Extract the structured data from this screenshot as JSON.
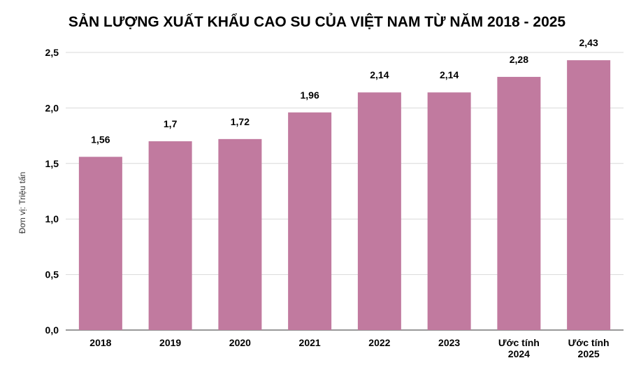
{
  "chart_data": {
    "type": "bar",
    "title": "SẢN LƯỢNG XUẤT KHẨU CAO SU CỦA VIỆT NAM TỪ NĂM 2018 - 2025",
    "xlabel": "",
    "ylabel": "Đơn vị: Triệu tấn",
    "categories": [
      [
        "2018"
      ],
      [
        "2019"
      ],
      [
        "2020"
      ],
      [
        "2021"
      ],
      [
        "2022"
      ],
      [
        "2023"
      ],
      [
        "Ước tính",
        "2024"
      ],
      [
        "Ước tính",
        "2025"
      ]
    ],
    "values": [
      1.56,
      1.7,
      1.72,
      1.96,
      2.14,
      2.14,
      2.28,
      2.43
    ],
    "value_labels": [
      "1,56",
      "1,7",
      "1,72",
      "1,96",
      "2,14",
      "2,14",
      "2,28",
      "2,43"
    ],
    "ylim": [
      0,
      2.5
    ],
    "yticks": [
      0,
      0.5,
      1.0,
      1.5,
      2.0,
      2.5
    ],
    "ytick_labels": [
      "0,0",
      "0,5",
      "1,0",
      "1,5",
      "2,0",
      "2,5"
    ],
    "grid": true,
    "legend": "none",
    "colors": {
      "bar": "#c17a9f",
      "grid": "#d9d9d9",
      "axis": "#333333"
    }
  }
}
